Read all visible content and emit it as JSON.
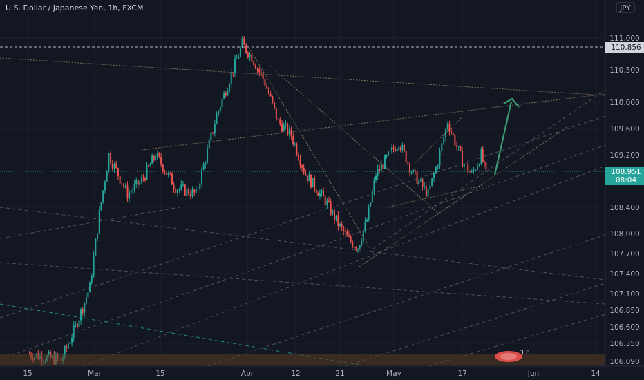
{
  "header": {
    "title": "U.S. Dollar / Japanese Yen, 1h, FXCM"
  },
  "currency_badge": "JPY",
  "price_axis": {
    "ticks": [
      "111.000",
      "110.500",
      "110.000",
      "109.600",
      "109.200",
      "108.400",
      "108.000",
      "107.700",
      "107.400",
      "107.100",
      "106.850",
      "106.600",
      "106.350",
      "106.090"
    ]
  },
  "time_axis": {
    "ticks": [
      "15",
      "Mar",
      "15",
      "Apr",
      "12",
      "21",
      "May",
      "17",
      "Jun",
      "14"
    ]
  },
  "price_tags": {
    "dashed_level": "110.856",
    "current_price": "108.951",
    "countdown": "08:04"
  },
  "colors": {
    "background": "#131722",
    "up": "#26a69a",
    "down": "#ef5350",
    "arrow": "#3d9970",
    "trendline": "#9c8a6a"
  },
  "chart_data": {
    "type": "candlestick",
    "title": "U.S. Dollar / Japanese Yen, 1h, FXCM",
    "ylim": [
      106.0,
      111.3
    ],
    "x_range": [
      "Feb 15",
      "Jun 14"
    ],
    "price_path": [
      {
        "x": "Feb 15",
        "y": 106.2
      },
      {
        "x": "Feb 22",
        "y": 106.1
      },
      {
        "x": "Feb 25",
        "y": 106.6
      },
      {
        "x": "Feb 28",
        "y": 107.2
      },
      {
        "x": "Mar 2",
        "y": 108.3
      },
      {
        "x": "Mar 4",
        "y": 109.2
      },
      {
        "x": "Mar 8",
        "y": 108.6
      },
      {
        "x": "Mar 11",
        "y": 108.8
      },
      {
        "x": "Mar 14",
        "y": 109.2
      },
      {
        "x": "Mar 18",
        "y": 108.7
      },
      {
        "x": "Mar 22",
        "y": 108.6
      },
      {
        "x": "Mar 26",
        "y": 109.8
      },
      {
        "x": "Mar 31",
        "y": 110.9
      },
      {
        "x": "Apr 2",
        "y": 110.7
      },
      {
        "x": "Apr 5",
        "y": 110.3
      },
      {
        "x": "Apr 8",
        "y": 109.7
      },
      {
        "x": "Apr 11",
        "y": 109.5
      },
      {
        "x": "Apr 14",
        "y": 108.9
      },
      {
        "x": "Apr 18",
        "y": 108.5
      },
      {
        "x": "Apr 21",
        "y": 108.1
      },
      {
        "x": "Apr 23",
        "y": 107.9
      },
      {
        "x": "Apr 25",
        "y": 107.8
      },
      {
        "x": "Apr 27",
        "y": 108.2
      },
      {
        "x": "Apr 29",
        "y": 108.9
      },
      {
        "x": "May 1",
        "y": 109.1
      },
      {
        "x": "May 4",
        "y": 109.4
      },
      {
        "x": "May 7",
        "y": 108.9
      },
      {
        "x": "May 10",
        "y": 108.6
      },
      {
        "x": "May 12",
        "y": 109.1
      },
      {
        "x": "May 14",
        "y": 109.7
      },
      {
        "x": "May 17",
        "y": 109.1
      },
      {
        "x": "May 19",
        "y": 108.9
      },
      {
        "x": "May 21",
        "y": 109.2
      },
      {
        "x": "May 22",
        "y": 108.9
      }
    ],
    "last_price": 108.951,
    "horizontal_levels": [
      110.856,
      108.951
    ]
  }
}
